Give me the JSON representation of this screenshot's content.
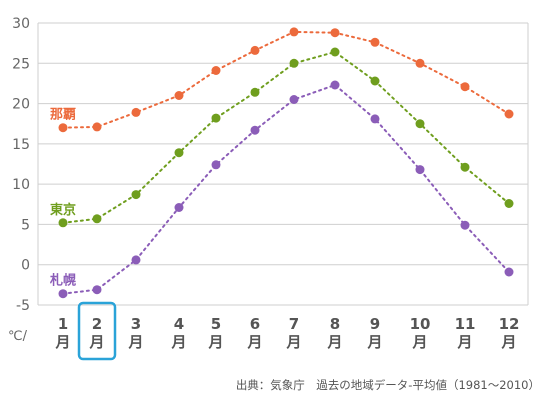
{
  "chart_data": {
    "type": "line",
    "unit_label": "℃/",
    "y_ticks": [
      "30",
      "25",
      "20",
      "15",
      "10",
      "5",
      "0",
      "-5"
    ],
    "ylim": [
      -5,
      30
    ],
    "grid": true,
    "categories": [
      {
        "num": "1",
        "unit": "月"
      },
      {
        "num": "2",
        "unit": "月"
      },
      {
        "num": "3",
        "unit": "月"
      },
      {
        "num": "4",
        "unit": "月"
      },
      {
        "num": "5",
        "unit": "月"
      },
      {
        "num": "6",
        "unit": "月"
      },
      {
        "num": "7",
        "unit": "月"
      },
      {
        "num": "8",
        "unit": "月"
      },
      {
        "num": "9",
        "unit": "月"
      },
      {
        "num": "10",
        "unit": "月"
      },
      {
        "num": "11",
        "unit": "月"
      },
      {
        "num": "12",
        "unit": "月"
      }
    ],
    "highlighted_category_index": 1,
    "highlight_color": "#2aa3d8",
    "series": [
      {
        "name": "那覇",
        "color": "#ec6a3c",
        "values": [
          17.0,
          17.1,
          18.9,
          21.0,
          24.1,
          26.6,
          28.9,
          28.8,
          27.6,
          25.0,
          22.1,
          18.7
        ]
      },
      {
        "name": "東京",
        "color": "#6f9e1e",
        "values": [
          5.2,
          5.7,
          8.7,
          13.9,
          18.2,
          21.4,
          25.0,
          26.4,
          22.8,
          17.5,
          12.1,
          7.6
        ]
      },
      {
        "name": "札幌",
        "color": "#8b5db8",
        "values": [
          -3.6,
          -3.1,
          0.6,
          7.1,
          12.4,
          16.7,
          20.5,
          22.3,
          18.1,
          11.8,
          4.9,
          -0.9
        ]
      }
    ],
    "source": "出典：気象庁　過去の地域データ-平均値（1981～2010）"
  }
}
